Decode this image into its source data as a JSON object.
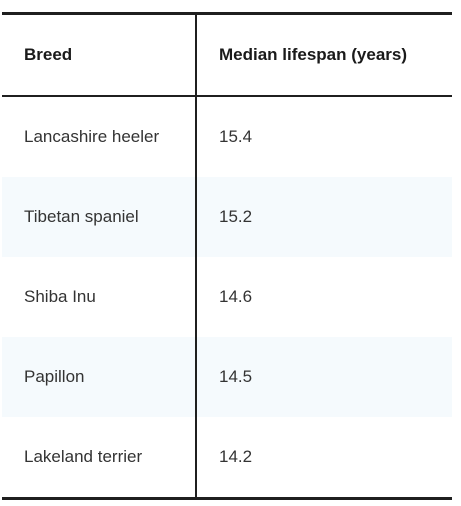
{
  "table": {
    "headers": {
      "breed": "Breed",
      "lifespan": "Median lifespan (years)"
    },
    "rows": [
      {
        "breed": "Lancashire heeler",
        "lifespan": "15.4"
      },
      {
        "breed": "Tibetan spaniel",
        "lifespan": "15.2"
      },
      {
        "breed": "Shiba Inu",
        "lifespan": "14.6"
      },
      {
        "breed": "Papillon",
        "lifespan": "14.5"
      },
      {
        "breed": "Lakeland terrier",
        "lifespan": "14.2"
      }
    ]
  },
  "colors": {
    "rule": "#1f1f1f",
    "alt_row_background": "#f5fafd",
    "text": "#333333"
  }
}
